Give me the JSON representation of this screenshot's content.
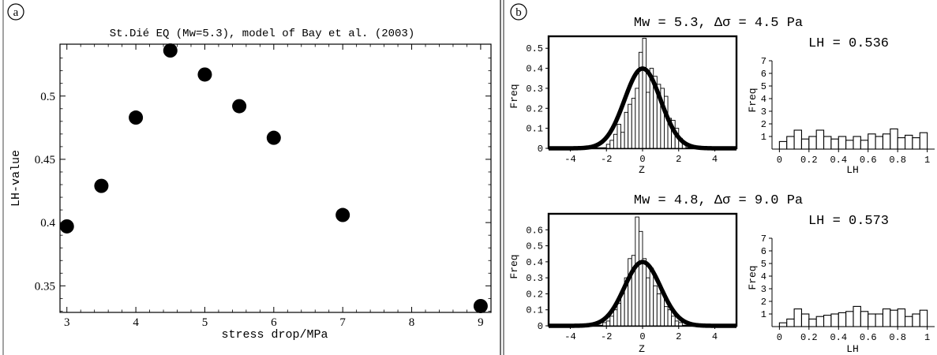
{
  "panel_labels": {
    "a": "a",
    "b": "b"
  },
  "left_plot": {
    "title": "St.Dié EQ (Mw=5.3), model of Bay et al. (2003)",
    "xlabel": "stress drop/MPa",
    "ylabel": "LH-value"
  },
  "top_group": {
    "title": "Mw = 5.3, Δσ = 4.5 Pa",
    "lh_title": "LH = 0.536",
    "hist_ylabel": "Freq",
    "hist_xlabel": "Z",
    "lh_ylabel": "Freq",
    "lh_xlabel": "LH"
  },
  "bottom_group": {
    "title": "Mw = 4.8, Δσ = 9.0 Pa",
    "lh_title": "LH = 0.573",
    "hist_ylabel": "Freq",
    "hist_xlabel": "Z",
    "lh_ylabel": "Freq",
    "lh_xlabel": "LH"
  },
  "chart_data": [
    {
      "id": "lh_vs_stress_drop",
      "type": "scatter",
      "title": "St.Dié EQ (Mw=5.3), model of Bay et al. (2003)",
      "xlabel": "stress drop/MPa",
      "ylabel": "LH-value",
      "x": [
        3,
        3.5,
        4,
        4.5,
        5,
        5.5,
        6,
        7,
        9
      ],
      "y": [
        0.397,
        0.429,
        0.483,
        0.536,
        0.517,
        0.492,
        0.467,
        0.406,
        0.334
      ],
      "xlim": [
        2.9,
        9.15
      ],
      "ylim": [
        0.329,
        0.541
      ],
      "xticks": [
        3,
        4,
        5,
        6,
        7,
        8,
        9
      ],
      "yticks": [
        0.35,
        0.4,
        0.45,
        0.5
      ],
      "marker_color": "#000000"
    },
    {
      "id": "z_hist_top",
      "type": "bar",
      "title": "Mw = 5.3, Δσ = 4.5 Pa",
      "xlabel": "Z",
      "ylabel": "Freq",
      "bin_start": -2.0,
      "bin_width": 0.2,
      "values": [
        0.02,
        0.04,
        0.07,
        0.12,
        0.08,
        0.18,
        0.22,
        0.25,
        0.3,
        0.48,
        0.55,
        0.28,
        0.4,
        0.36,
        0.32,
        0.3,
        0.26,
        0.15,
        0.14,
        0.1,
        0.05,
        0.03
      ],
      "curve": "normal(0,1)",
      "xlim": [
        -5.2,
        5.2
      ],
      "ylim": [
        0,
        0.56
      ],
      "xticks": [
        -4,
        -2,
        0,
        2,
        4
      ],
      "yticks": [
        0,
        0.1,
        0.2,
        0.3,
        0.4,
        0.5
      ]
    },
    {
      "id": "lh_hist_top",
      "type": "bar",
      "xlabel": "LH",
      "ylabel": "Freq",
      "bin_start": 0,
      "bin_width": 0.05,
      "values": [
        0.6,
        1.0,
        1.5,
        0.8,
        1.0,
        1.5,
        1.0,
        0.8,
        1.0,
        0.7,
        1.0,
        0.7,
        1.2,
        1.0,
        1.2,
        1.6,
        0.9,
        1.1,
        0.9,
        1.3
      ],
      "xlim": [
        -0.05,
        1.05
      ],
      "ylim": [
        0,
        7
      ],
      "xticks": [
        0,
        0.2,
        0.4,
        0.6,
        0.8,
        1
      ],
      "xticklabels": [
        "0",
        "0.2",
        "0.4",
        "0.6",
        "0.8",
        "1"
      ],
      "yticks": [
        1,
        2,
        3,
        4,
        5,
        6,
        7
      ]
    },
    {
      "id": "z_hist_bottom",
      "type": "bar",
      "title": "Mw = 4.8, Δσ = 9.0 Pa",
      "xlabel": "Z",
      "ylabel": "Freq",
      "bin_start": -2.2,
      "bin_width": 0.2,
      "values": [
        0.02,
        0.03,
        0.06,
        0.1,
        0.14,
        0.2,
        0.3,
        0.42,
        0.44,
        0.68,
        0.59,
        0.42,
        0.3,
        0.36,
        0.25,
        0.2,
        0.22,
        0.12,
        0.1,
        0.06,
        0.03,
        0.02
      ],
      "curve": "normal(0,1)",
      "xlim": [
        -5.2,
        5.2
      ],
      "ylim": [
        0,
        0.7
      ],
      "xticks": [
        -4,
        -2,
        0,
        2,
        4
      ],
      "yticks": [
        0,
        0.1,
        0.2,
        0.3,
        0.4,
        0.5,
        0.6
      ]
    },
    {
      "id": "lh_hist_bottom",
      "type": "bar",
      "xlabel": "LH",
      "ylabel": "Freq",
      "bin_start": 0,
      "bin_width": 0.05,
      "values": [
        0.3,
        0.6,
        1.4,
        1.0,
        0.6,
        0.8,
        0.9,
        1.0,
        1.1,
        1.2,
        1.6,
        1.2,
        1.0,
        1.0,
        1.4,
        1.3,
        1.4,
        0.8,
        1.0,
        1.3
      ],
      "xlim": [
        -0.05,
        1.05
      ],
      "ylim": [
        0,
        7
      ],
      "xticks": [
        0,
        0.2,
        0.4,
        0.6,
        0.8,
        1
      ],
      "xticklabels": [
        "0",
        "0.2",
        "0.4",
        "0.6",
        "0.8",
        "1"
      ],
      "yticks": [
        1,
        2,
        3,
        4,
        5,
        6,
        7
      ]
    }
  ]
}
